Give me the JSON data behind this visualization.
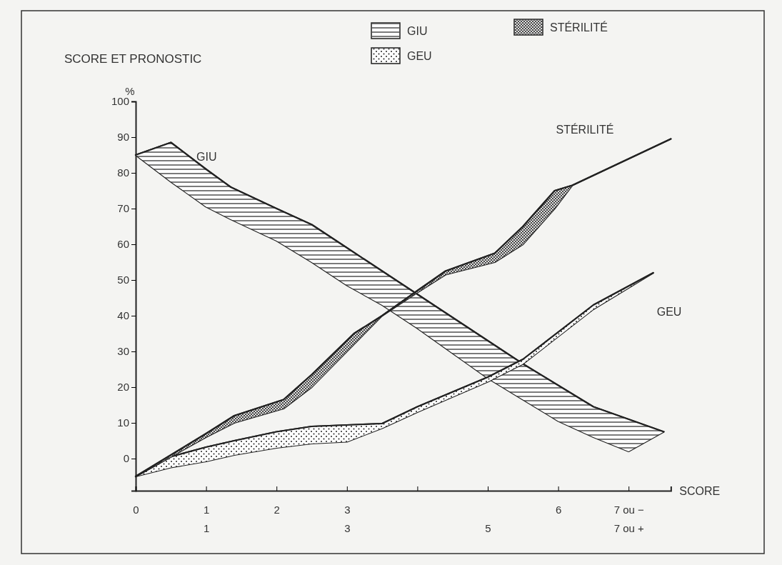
{
  "chart_data": {
    "type": "line",
    "title": "SCORE ET PRONOSTIC",
    "ylabel": "%",
    "xlabel": "SCORE",
    "xlim": [
      0,
      7.6
    ],
    "xticks": [
      0,
      1,
      2,
      3,
      {
        "value": 4,
        "label": null
      },
      {
        "value": 5,
        "label": null
      },
      6,
      {
        "value": 7,
        "label": "7 ou −"
      }
    ],
    "x2lim": [
      0,
      7.6
    ],
    "x2ticks": [
      1,
      3,
      5,
      {
        "value": 7,
        "label": "7 ou +"
      }
    ],
    "ylim": [
      -9,
      100
    ],
    "yticks": [
      0,
      10,
      20,
      30,
      40,
      50,
      60,
      70,
      80,
      90,
      100
    ],
    "grid": false,
    "legend": "top",
    "marker": "none",
    "line_style": "solid",
    "series": [
      {
        "name": "GIU",
        "color": "#222222",
        "x": [
          0,
          0.5,
          1,
          1.35,
          2,
          2.5,
          3,
          3.5,
          4,
          4.5,
          5,
          5.5,
          6,
          6.5,
          7,
          7.5
        ],
        "values": [
          85,
          88.5,
          81,
          76,
          70,
          65.5,
          59,
          52.5,
          46,
          39.5,
          33,
          26.5,
          20.5,
          14.5,
          11,
          7.5
        ],
        "lower": [
          85,
          77.5,
          70.5,
          67,
          61,
          55,
          48.5,
          43,
          36.5,
          29.5,
          22.5,
          16.5,
          10.5,
          6,
          2,
          7.5
        ],
        "upper": [
          85,
          88.5,
          81,
          76,
          70,
          65.5,
          59,
          52.5,
          46,
          39.5,
          33,
          26.5,
          20.5,
          14.5,
          11,
          7.5
        ]
      },
      {
        "name": "GEU",
        "color": "#222222",
        "x": [
          0,
          0.5,
          1,
          1.4,
          2,
          2.5,
          3,
          3.5,
          4,
          5,
          5.5,
          6.5,
          7.35
        ],
        "values": [
          -5,
          0.5,
          3.2,
          5,
          7.5,
          9,
          9.4,
          9.8,
          14.5,
          22.8,
          27.8,
          43,
          52
        ],
        "lower": [
          -5,
          -2.5,
          -0.8,
          1,
          3,
          4.2,
          4.7,
          8.5,
          13,
          21.5,
          26.5,
          41.8,
          52
        ],
        "upper": [
          -5,
          0.5,
          3.2,
          5,
          7.5,
          9,
          9.4,
          9.8,
          14.5,
          22.8,
          27.8,
          43,
          52
        ]
      },
      {
        "name": "STÉRILITÉ",
        "color": "#222222",
        "x": [
          0,
          1,
          1.4,
          2.1,
          2.5,
          3.1,
          3.5,
          4,
          4.4,
          5.1,
          5.5,
          5.95,
          6.2,
          7.6
        ],
        "values": [
          -5,
          7,
          12,
          16.5,
          23.5,
          35,
          40,
          47,
          52.5,
          57.5,
          65,
          75,
          76.5,
          89.5
        ],
        "lower": [
          -5,
          6,
          10,
          14,
          20,
          32,
          40,
          46.5,
          51.5,
          55,
          60,
          70,
          76.5,
          89.5
        ],
        "upper": [
          -5,
          7,
          12,
          16.5,
          23.5,
          35,
          40,
          47,
          52.5,
          57.5,
          65,
          75,
          76.5,
          89.5
        ]
      }
    ]
  }
}
